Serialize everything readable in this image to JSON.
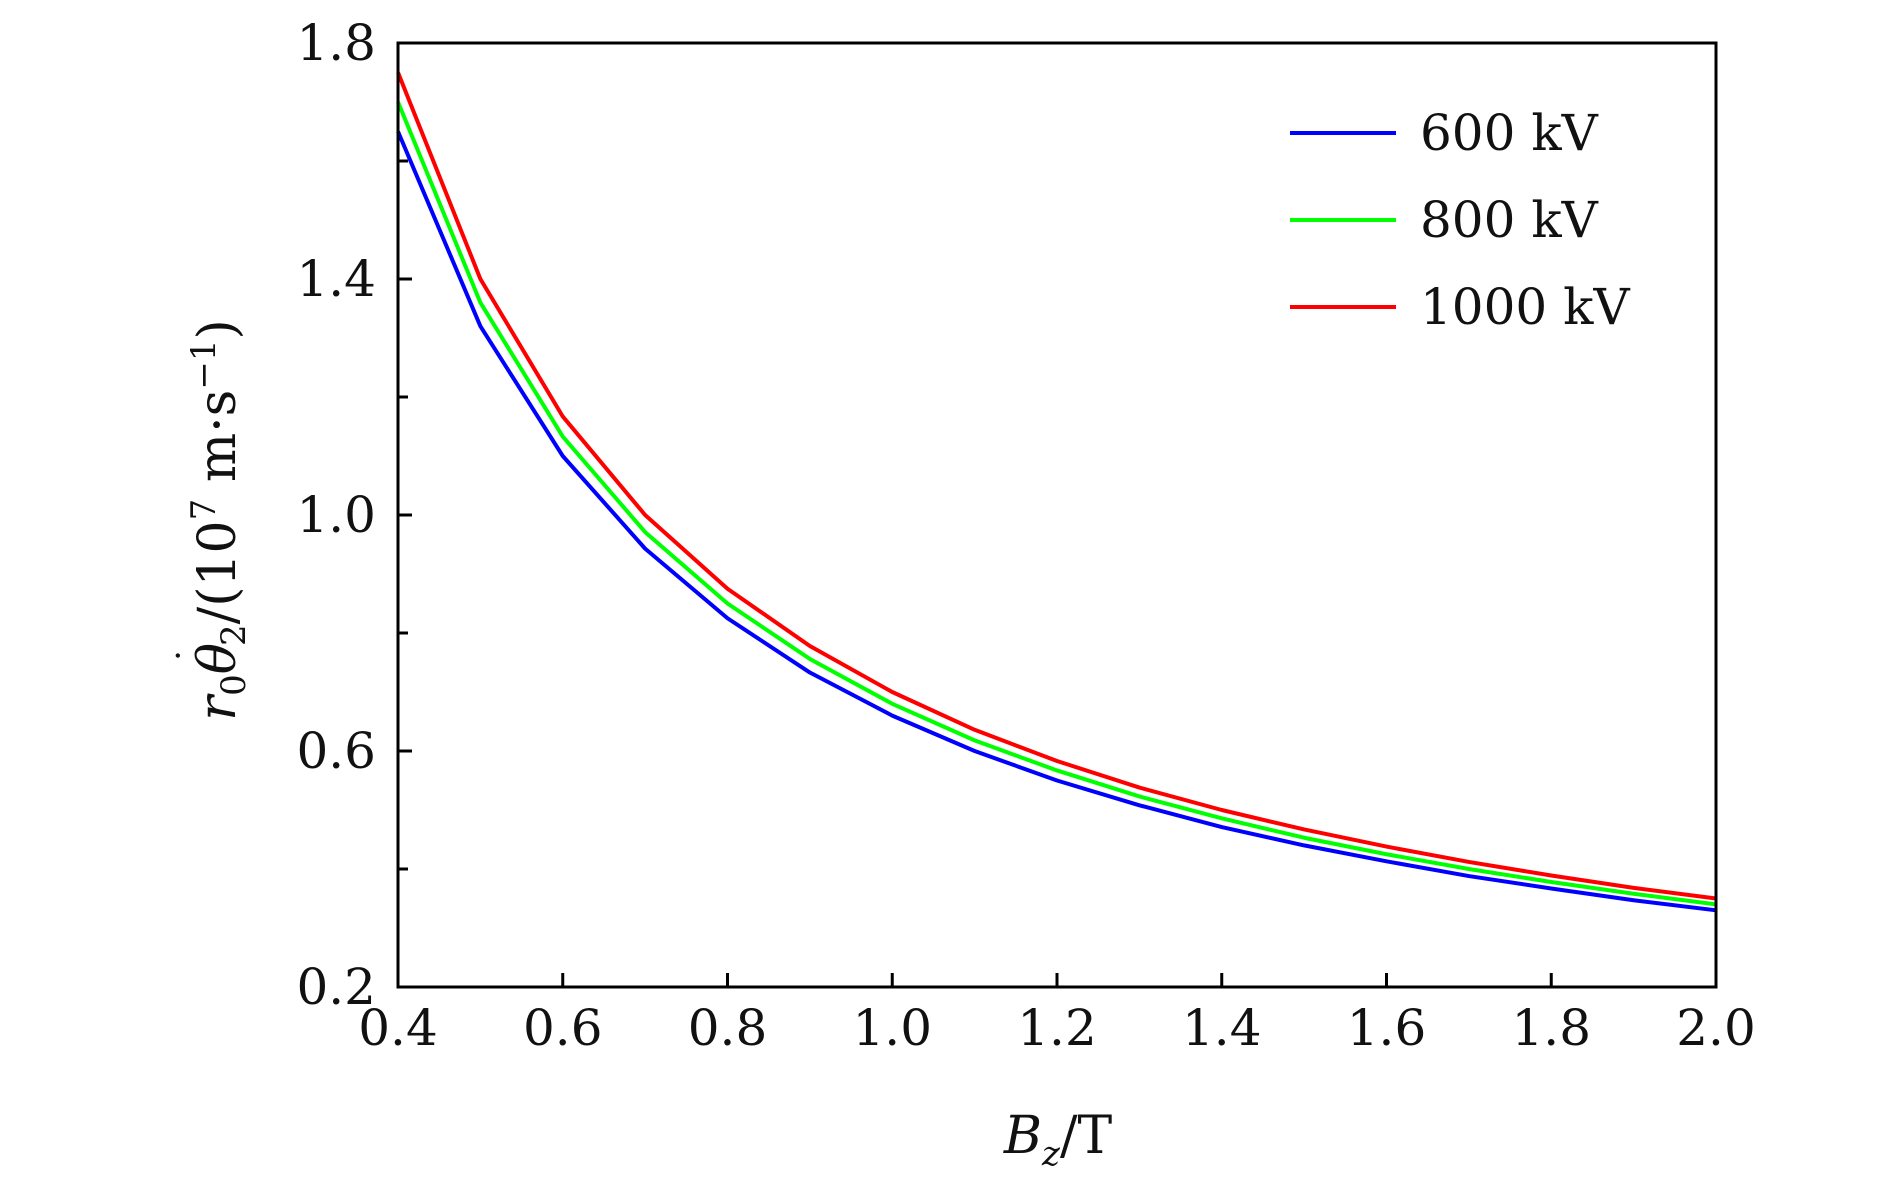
{
  "chart_data": {
    "type": "line",
    "title": "",
    "xlabel": "B_z/T",
    "ylabel": "r0 θ̇2/(10^7 m·s^-1)",
    "xlabel_parts": {
      "main": "B",
      "sub": "z",
      "rest": "/T"
    },
    "ylabel_parts": {
      "r": "r",
      "r_sub": "0",
      "theta": "θ",
      "theta_dot": "˙",
      "theta_sub": "2",
      "rest": "/(10",
      "exp": "7",
      "unit": " m·s",
      "unit_exp": "−1",
      "close": ")"
    },
    "xlim": [
      0.4,
      2.0
    ],
    "ylim": [
      0.2,
      1.8
    ],
    "x_ticks": [
      0.4,
      0.6,
      0.8,
      1.0,
      1.2,
      1.4,
      1.6,
      1.8,
      2.0
    ],
    "x_tick_labels": [
      "0.4",
      "0.6",
      "0.8",
      "1.0",
      "1.2",
      "1.4",
      "1.6",
      "1.8",
      "2.0"
    ],
    "y_ticks": [
      0.2,
      0.6,
      1.0,
      1.4,
      1.8
    ],
    "y_tick_labels": [
      "0.2",
      "0.6",
      "1.0",
      "1.4",
      "1.8"
    ],
    "y_minor_ticks": [
      0.4,
      0.8,
      1.2,
      1.6
    ],
    "grid": false,
    "legend_position": "top-right",
    "x": [
      0.4,
      0.5,
      0.6,
      0.7,
      0.8,
      0.9,
      1.0,
      1.1,
      1.2,
      1.3,
      1.4,
      1.5,
      1.6,
      1.7,
      1.8,
      1.9,
      2.0
    ],
    "series": [
      {
        "name": "600 kV",
        "color": "#0000ff",
        "values": [
          1.65,
          1.32,
          1.1,
          0.943,
          0.825,
          0.733,
          0.66,
          0.6,
          0.55,
          0.508,
          0.471,
          0.44,
          0.413,
          0.388,
          0.367,
          0.347,
          0.33
        ]
      },
      {
        "name": "800 kV",
        "color": "#00ff00",
        "values": [
          1.7,
          1.36,
          1.133,
          0.971,
          0.85,
          0.756,
          0.68,
          0.618,
          0.567,
          0.523,
          0.486,
          0.453,
          0.425,
          0.4,
          0.378,
          0.358,
          0.34
        ]
      },
      {
        "name": "1000 kV",
        "color": "#ff0000",
        "values": [
          1.75,
          1.4,
          1.167,
          1.0,
          0.875,
          0.778,
          0.7,
          0.636,
          0.583,
          0.538,
          0.5,
          0.467,
          0.438,
          0.412,
          0.389,
          0.368,
          0.35
        ]
      }
    ]
  }
}
